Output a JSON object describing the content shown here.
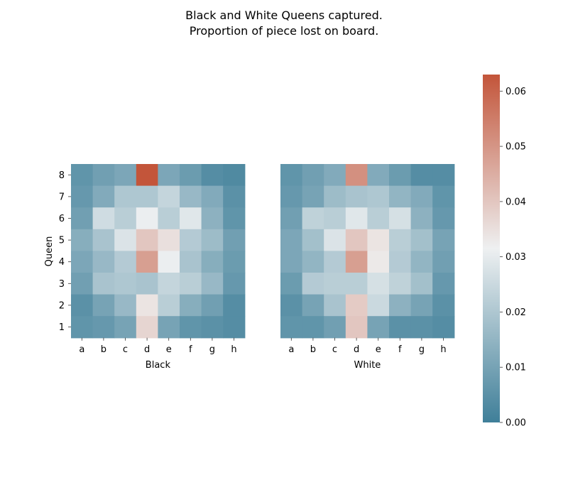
{
  "chart_data": {
    "type": "heatmap",
    "title_lines": [
      "Black and White Queens captured.",
      "Proportion of piece lost on board."
    ],
    "files": [
      "a",
      "b",
      "c",
      "d",
      "e",
      "f",
      "g",
      "h"
    ],
    "ranks": [
      "8",
      "7",
      "6",
      "5",
      "4",
      "3",
      "2",
      "1"
    ],
    "ylabel": "Queen",
    "colorbar": {
      "ticks": [
        "0.00",
        "0.01",
        "0.02",
        "0.03",
        "0.04",
        "0.05",
        "0.06"
      ],
      "tick_values": [
        0,
        0.01,
        0.02,
        0.03,
        0.04,
        0.05,
        0.06
      ],
      "vmin": 0.0,
      "vmax": 0.063,
      "colors": [
        "#3f7f99",
        "#eef0f1",
        "#c3553a"
      ]
    },
    "panels": [
      {
        "xlabel": "Black",
        "values": [
          [
            0.006,
            0.009,
            0.011,
            0.063,
            0.011,
            0.008,
            0.004,
            0.003
          ],
          [
            0.007,
            0.012,
            0.02,
            0.02,
            0.024,
            0.016,
            0.012,
            0.005
          ],
          [
            0.009,
            0.026,
            0.022,
            0.031,
            0.022,
            0.029,
            0.014,
            0.006
          ],
          [
            0.013,
            0.019,
            0.028,
            0.04,
            0.035,
            0.021,
            0.017,
            0.009
          ],
          [
            0.011,
            0.016,
            0.021,
            0.048,
            0.031,
            0.019,
            0.013,
            0.008
          ],
          [
            0.009,
            0.019,
            0.02,
            0.019,
            0.024,
            0.022,
            0.016,
            0.007
          ],
          [
            0.005,
            0.01,
            0.016,
            0.034,
            0.022,
            0.013,
            0.009,
            0.004
          ],
          [
            0.006,
            0.007,
            0.01,
            0.037,
            0.01,
            0.006,
            0.005,
            0.004
          ]
        ]
      },
      {
        "xlabel": "White",
        "values": [
          [
            0.006,
            0.009,
            0.012,
            0.051,
            0.012,
            0.008,
            0.004,
            0.004
          ],
          [
            0.007,
            0.01,
            0.017,
            0.019,
            0.02,
            0.015,
            0.012,
            0.006
          ],
          [
            0.009,
            0.023,
            0.022,
            0.029,
            0.022,
            0.027,
            0.014,
            0.007
          ],
          [
            0.011,
            0.018,
            0.028,
            0.04,
            0.034,
            0.022,
            0.018,
            0.01
          ],
          [
            0.011,
            0.015,
            0.021,
            0.048,
            0.033,
            0.021,
            0.015,
            0.009
          ],
          [
            0.008,
            0.021,
            0.022,
            0.022,
            0.027,
            0.023,
            0.018,
            0.007
          ],
          [
            0.005,
            0.01,
            0.019,
            0.039,
            0.025,
            0.014,
            0.01,
            0.005
          ],
          [
            0.006,
            0.006,
            0.009,
            0.04,
            0.01,
            0.005,
            0.005,
            0.004
          ]
        ]
      }
    ]
  }
}
